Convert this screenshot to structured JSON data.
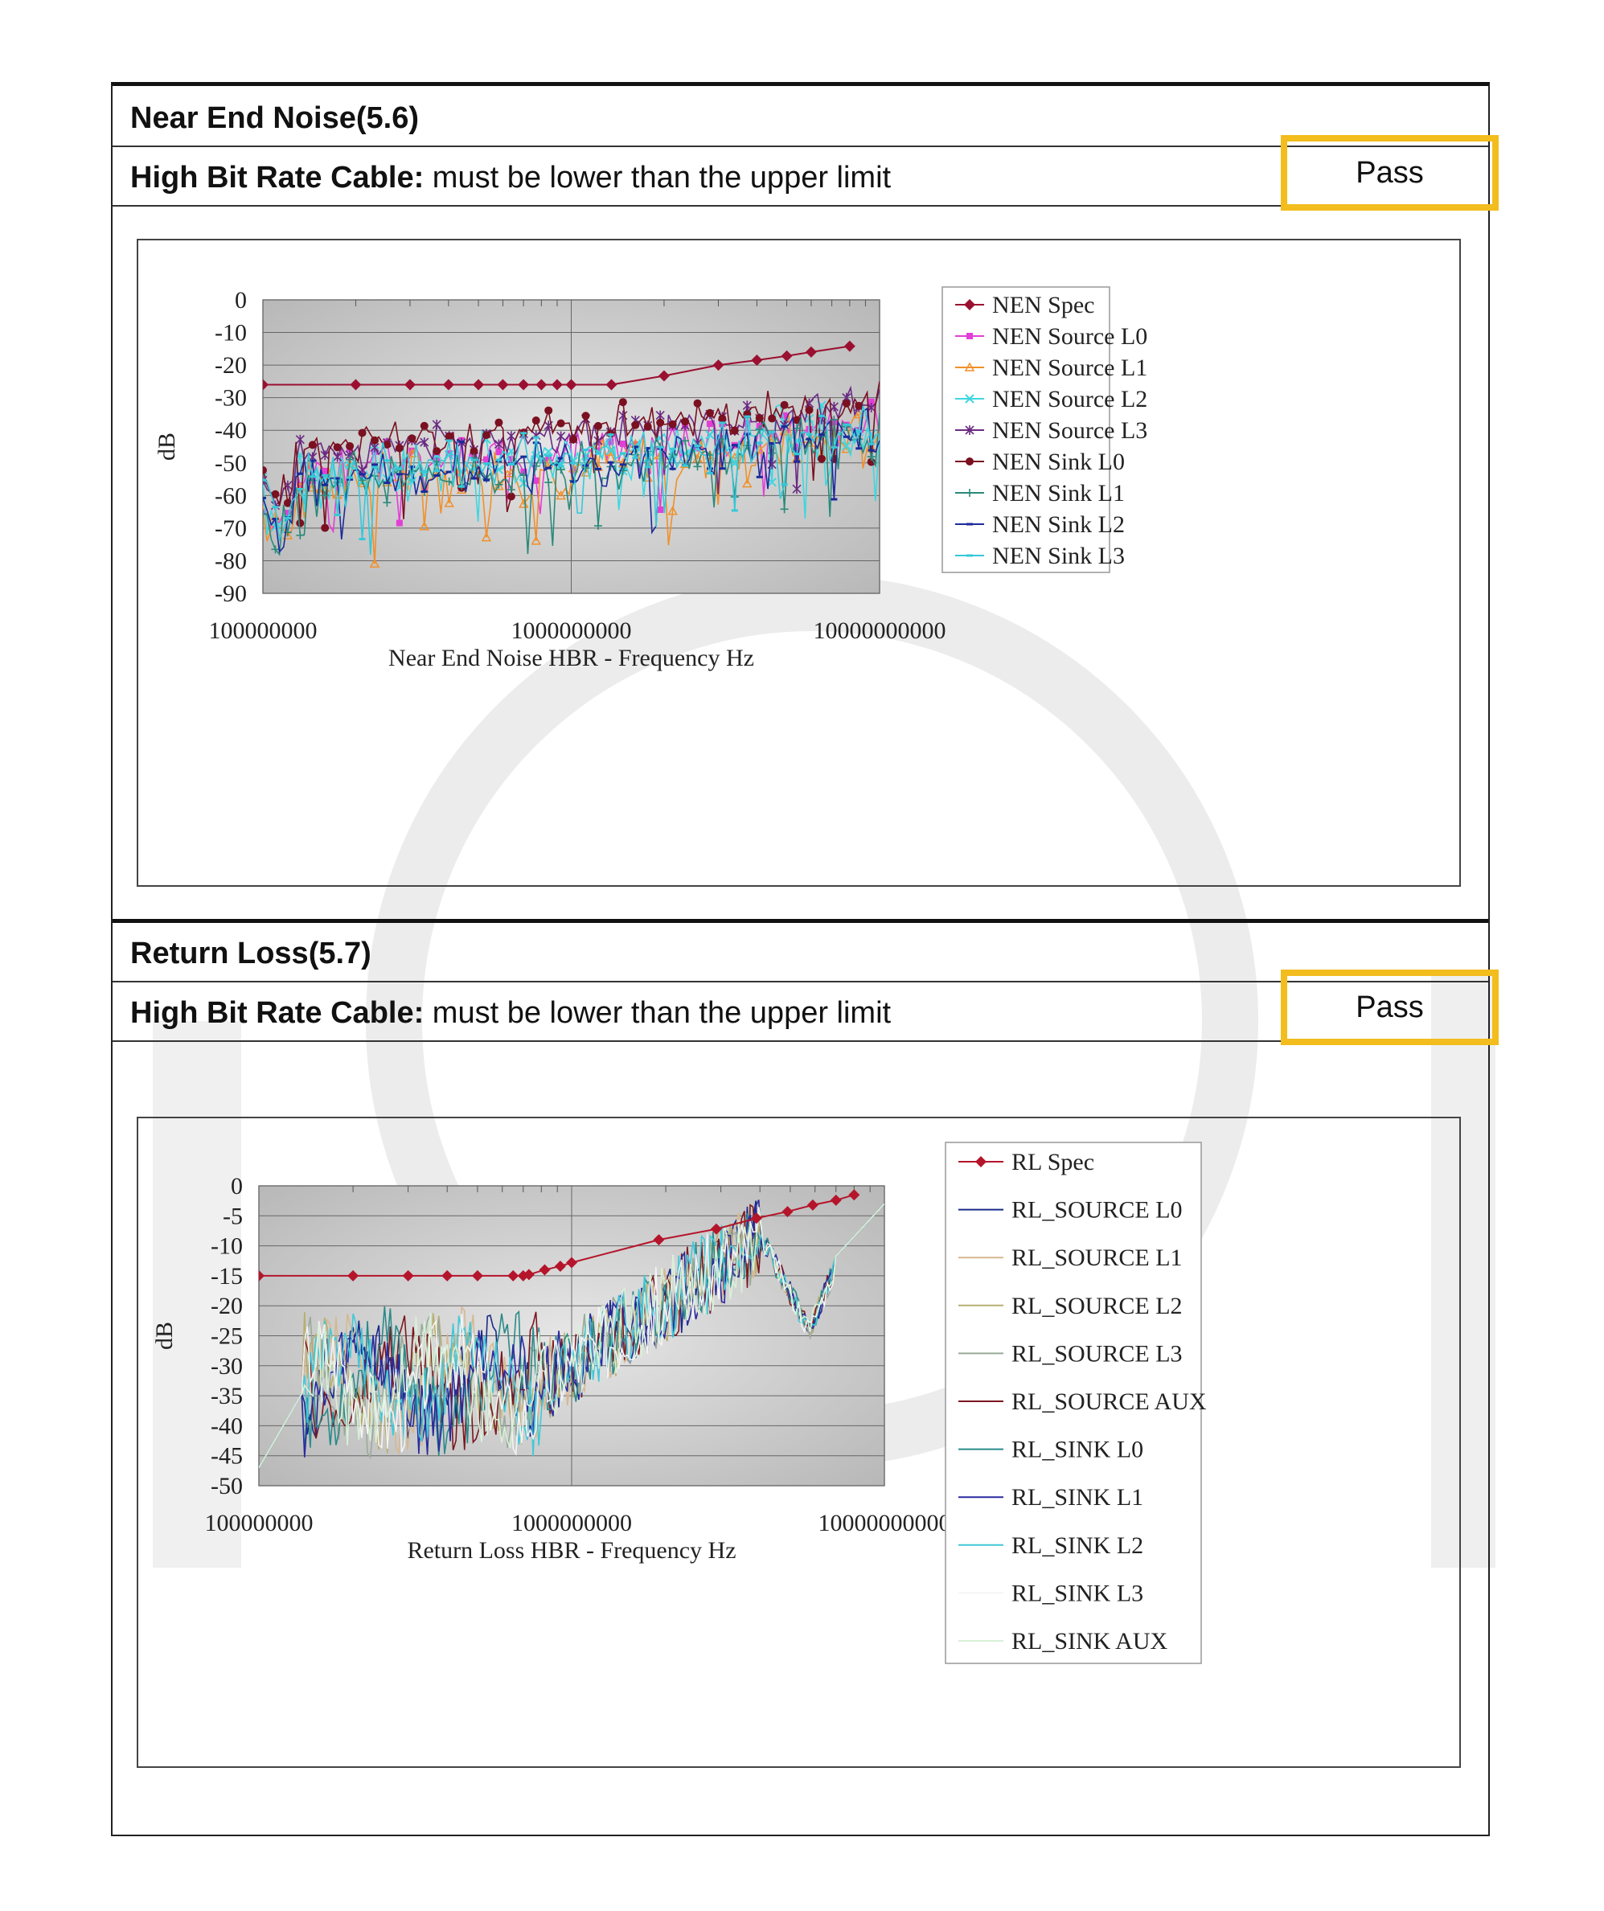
{
  "sections": [
    {
      "title": "Near End Noise(5.6)",
      "requirement_label": "High Bit Rate Cable:",
      "requirement_text": " must be lower than the upper limit",
      "result": "Pass"
    },
    {
      "title": "Return Loss(5.7)",
      "requirement_label": "High Bit Rate Cable:",
      "requirement_text": " must be lower than the upper limit",
      "result": "Pass"
    }
  ],
  "colors": {
    "highlight": "#f2bd1d",
    "plot_bg": "#cfcfcf",
    "spec": "#b5152b"
  },
  "chart_data": [
    {
      "type": "line",
      "title": "",
      "xlabel": "Near End Noise  HBR - Frequency Hz",
      "ylabel": "dB",
      "xscale": "log",
      "xlim": [
        100000000,
        10000000000
      ],
      "ylim": [
        -90,
        0
      ],
      "yticks": [
        0,
        -10,
        -20,
        -30,
        -40,
        -50,
        -60,
        -70,
        -80,
        -90
      ],
      "ytick_labels": [
        "0",
        "-10",
        "-20",
        "-30",
        "-40",
        "-50",
        "-60",
        "-70",
        "-80",
        "-90"
      ],
      "xtick_labels": [
        "100000000",
        "1000000000",
        "10000000000"
      ],
      "xtick_values": [
        100000000,
        1000000000,
        10000000000
      ],
      "legend_position": "right",
      "spec": {
        "name": "NEN Spec",
        "color": "#9b1030",
        "marker": "diamond",
        "points": [
          [
            100000000,
            -26
          ],
          [
            200000000,
            -26
          ],
          [
            300000000,
            -26
          ],
          [
            400000000,
            -26
          ],
          [
            500000000,
            -26
          ],
          [
            600000000,
            -26
          ],
          [
            700000000,
            -26
          ],
          [
            800000000,
            -26
          ],
          [
            900000000,
            -26
          ],
          [
            1000000000,
            -26
          ],
          [
            1350000000,
            -26
          ],
          [
            2000000000,
            -23.3
          ],
          [
            3000000000,
            -20
          ],
          [
            4000000000,
            -18.5
          ],
          [
            5000000000,
            -17.2
          ],
          [
            6000000000,
            -16
          ],
          [
            8000000000,
            -14.2
          ]
        ]
      },
      "measured": [
        {
          "name": "NEN Source L0",
          "color": "#e23fd6",
          "marker": "square",
          "base": -54,
          "amp": 9,
          "seed": 3
        },
        {
          "name": "NEN Source L1",
          "color": "#f0902a",
          "marker": "triangle",
          "base": -58,
          "amp": 11,
          "seed": 7
        },
        {
          "name": "NEN Source L2",
          "color": "#3fd6e0",
          "marker": "x",
          "base": -55,
          "amp": 11,
          "seed": 11
        },
        {
          "name": "NEN Source L3",
          "color": "#6a2a82",
          "marker": "star",
          "base": -48,
          "amp": 7,
          "seed": 13
        },
        {
          "name": "NEN Sink L0",
          "color": "#7a1020",
          "marker": "circle",
          "base": -46,
          "amp": 7,
          "seed": 17
        },
        {
          "name": "NEN Sink L1",
          "color": "#2a8a7a",
          "marker": "plus",
          "base": -58,
          "amp": 10,
          "seed": 19
        },
        {
          "name": "NEN Sink L2",
          "color": "#1c2a9a",
          "marker": "dash",
          "base": -57,
          "amp": 10,
          "seed": 23
        },
        {
          "name": "NEN Sink L3",
          "color": "#35c8d8",
          "marker": "dash",
          "base": -55,
          "amp": 10,
          "seed": 29
        }
      ]
    },
    {
      "type": "line",
      "title": "",
      "xlabel": "Return Loss  HBR - Frequency Hz",
      "ylabel": "dB",
      "xscale": "log",
      "xlim": [
        100000000,
        10000000000
      ],
      "ylim": [
        -50,
        0
      ],
      "yticks": [
        0,
        -5,
        -10,
        -15,
        -20,
        -25,
        -30,
        -35,
        -40,
        -45,
        -50
      ],
      "ytick_labels": [
        "0",
        "-5",
        "-10",
        "-15",
        "-20",
        "-25",
        "-30",
        "-35",
        "-40",
        "-45",
        "-50"
      ],
      "xtick_labels": [
        "100000000",
        "1000000000",
        "10000000000"
      ],
      "xtick_values": [
        100000000,
        1000000000,
        10000000000
      ],
      "legend_position": "right",
      "spec": {
        "name": "RL Spec",
        "color": "#b5152b",
        "marker": "diamond",
        "points": [
          [
            100000000,
            -15
          ],
          [
            200000000,
            -15
          ],
          [
            300000000,
            -15
          ],
          [
            400000000,
            -15
          ],
          [
            500000000,
            -15
          ],
          [
            650000000,
            -15
          ],
          [
            700000000,
            -15
          ],
          [
            730000000,
            -14.8
          ],
          [
            820000000,
            -14
          ],
          [
            920000000,
            -13.4
          ],
          [
            1000000000,
            -12.8
          ],
          [
            1900000000,
            -9
          ],
          [
            2900000000,
            -7.2
          ],
          [
            3900000000,
            -5.4
          ],
          [
            4900000000,
            -4.3
          ],
          [
            5900000000,
            -3.2
          ],
          [
            7000000000,
            -2.4
          ],
          [
            8000000000,
            -1.5
          ]
        ]
      },
      "measured": [
        {
          "name": "RL_SOURCE L0",
          "color": "#1a2a8a",
          "seed": 31
        },
        {
          "name": "RL_SOURCE L1",
          "color": "#d6b890",
          "seed": 37
        },
        {
          "name": "RL_SOURCE L2",
          "color": "#b8ae70",
          "seed": 41
        },
        {
          "name": "RL_SOURCE L3",
          "color": "#9aaa9a",
          "seed": 43
        },
        {
          "name": "RL_SOURCE AUX",
          "color": "#7a1820",
          "seed": 47
        },
        {
          "name": "RL_SINK L0",
          "color": "#2a8a8a",
          "seed": 53
        },
        {
          "name": "RL_SINK L1",
          "color": "#2a2aa0",
          "seed": 59
        },
        {
          "name": "RL_SINK L2",
          "color": "#40c8d8",
          "seed": 61
        },
        {
          "name": "RL_SINK L3",
          "color": "#f4f4f4",
          "seed": 67
        },
        {
          "name": "RL_SINK AUX",
          "color": "#d8f0d8",
          "seed": 71
        }
      ]
    }
  ]
}
